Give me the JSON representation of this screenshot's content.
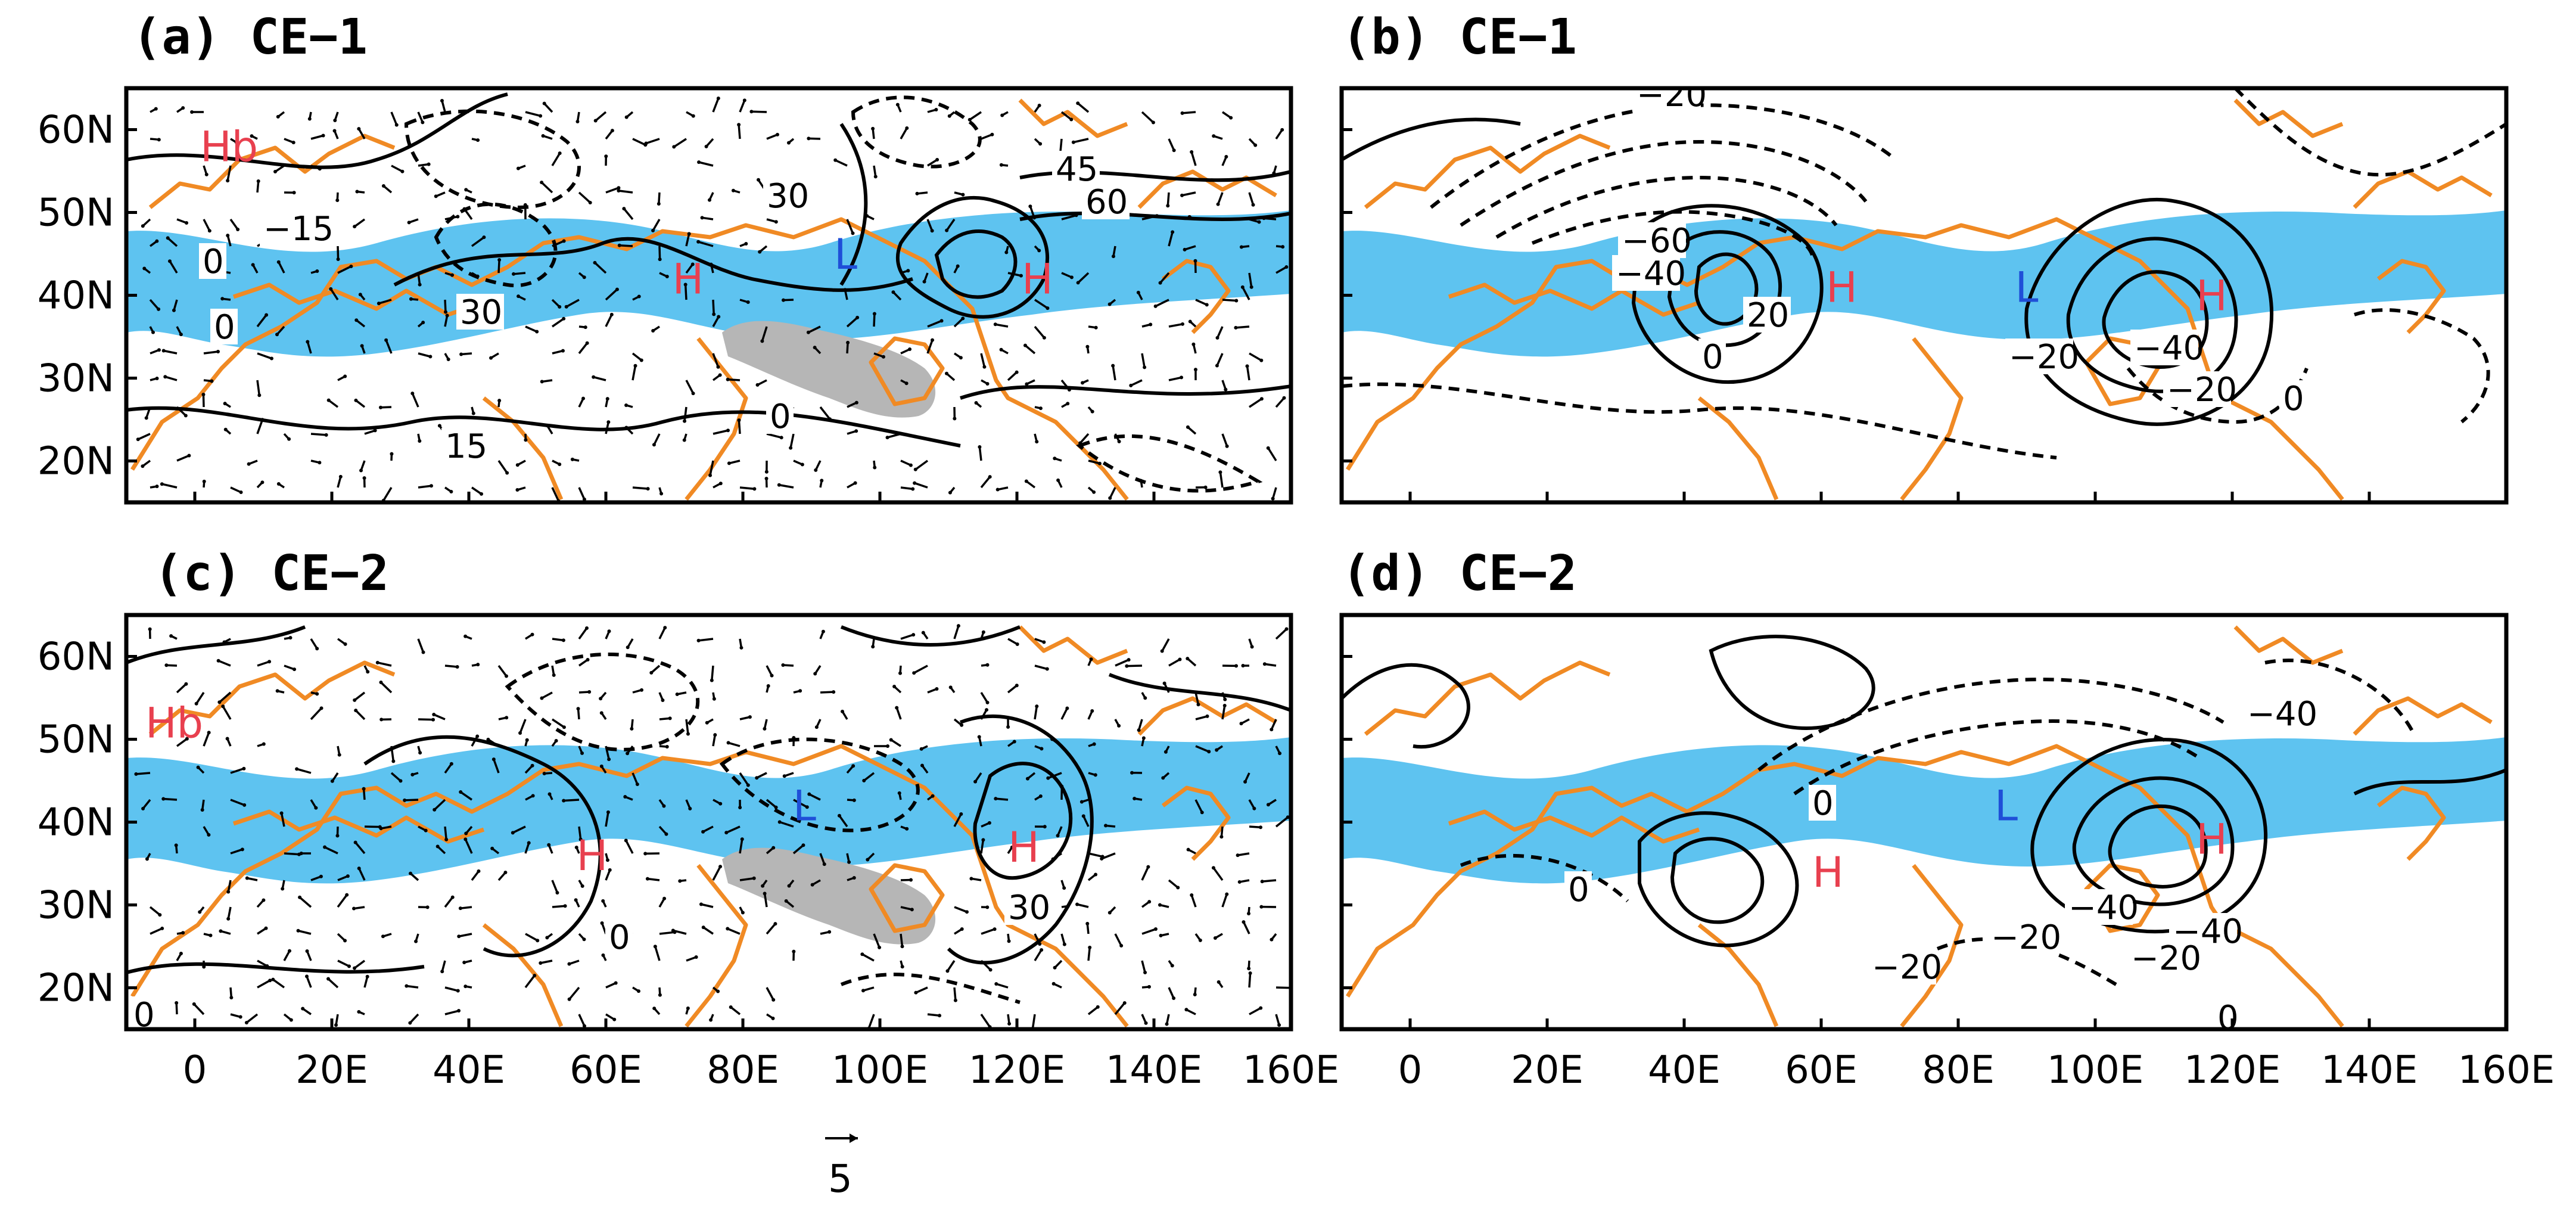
{
  "figure": {
    "panels": [
      {
        "id": "a",
        "title": "(a) CE−1",
        "kind": "height-wind",
        "contour_labels": [
          "−15",
          "0",
          "30",
          "15",
          "0",
          "0",
          "30",
          "45",
          "60"
        ],
        "centers": [
          {
            "label": "Hb",
            "lon": 5,
            "lat": 58,
            "color": "#e8404f"
          },
          {
            "label": "H",
            "lon": 72,
            "lat": 42,
            "color": "#e8404f"
          },
          {
            "label": "L",
            "lon": 95,
            "lat": 45,
            "color": "#1f4fd8"
          },
          {
            "label": "H",
            "lon": 123,
            "lat": 42,
            "color": "#e8404f"
          }
        ]
      },
      {
        "id": "b",
        "title": "(b) CE−1",
        "kind": "contour",
        "contour_labels": [
          "−20",
          "−60",
          "−40",
          "20",
          "0",
          "−20",
          "−40",
          "−20",
          "0"
        ],
        "centers": [
          {
            "label": "H",
            "lon": 63,
            "lat": 41,
            "color": "#e8404f"
          },
          {
            "label": "L",
            "lon": 90,
            "lat": 41,
            "color": "#1f4fd8"
          },
          {
            "label": "H",
            "lon": 117,
            "lat": 40,
            "color": "#e8404f"
          }
        ]
      },
      {
        "id": "c",
        "title": "(c) CE−2",
        "kind": "height-wind",
        "contour_labels": [
          "0",
          "30",
          "0"
        ],
        "centers": [
          {
            "label": "Hb",
            "lon": -3,
            "lat": 52,
            "color": "#e8404f"
          },
          {
            "label": "H",
            "lon": 58,
            "lat": 36,
            "color": "#e8404f"
          },
          {
            "label": "L",
            "lon": 89,
            "lat": 42,
            "color": "#1f4fd8"
          },
          {
            "label": "H",
            "lon": 121,
            "lat": 37,
            "color": "#e8404f"
          }
        ]
      },
      {
        "id": "d",
        "title": "(d) CE−2",
        "kind": "contour",
        "contour_labels": [
          "0",
          "0",
          "−40",
          "−20",
          "−40",
          "−20",
          "−40",
          "−20",
          "0"
        ],
        "centers": [
          {
            "label": "H",
            "lon": 61,
            "lat": 34,
            "color": "#e8404f"
          },
          {
            "label": "L",
            "lon": 87,
            "lat": 42,
            "color": "#1f4fd8"
          },
          {
            "label": "H",
            "lon": 117,
            "lat": 38,
            "color": "#e8404f"
          }
        ]
      }
    ],
    "axes": {
      "lon_range": [
        -10,
        160
      ],
      "lat_range": [
        15,
        65
      ],
      "x_ticks": [
        "0",
        "20E",
        "40E",
        "60E",
        "80E",
        "100E",
        "120E",
        "140E",
        "160E"
      ],
      "y_ticks": [
        "60N",
        "50N",
        "40N",
        "30N",
        "20N"
      ]
    },
    "reference_vector": {
      "label": "5"
    },
    "colors": {
      "jet_core": "#5ec3f0",
      "coastline": "#f08a24",
      "tibetan_plateau": "#b6b6b6",
      "high": "#e8404f",
      "low": "#1f4fd8"
    }
  }
}
